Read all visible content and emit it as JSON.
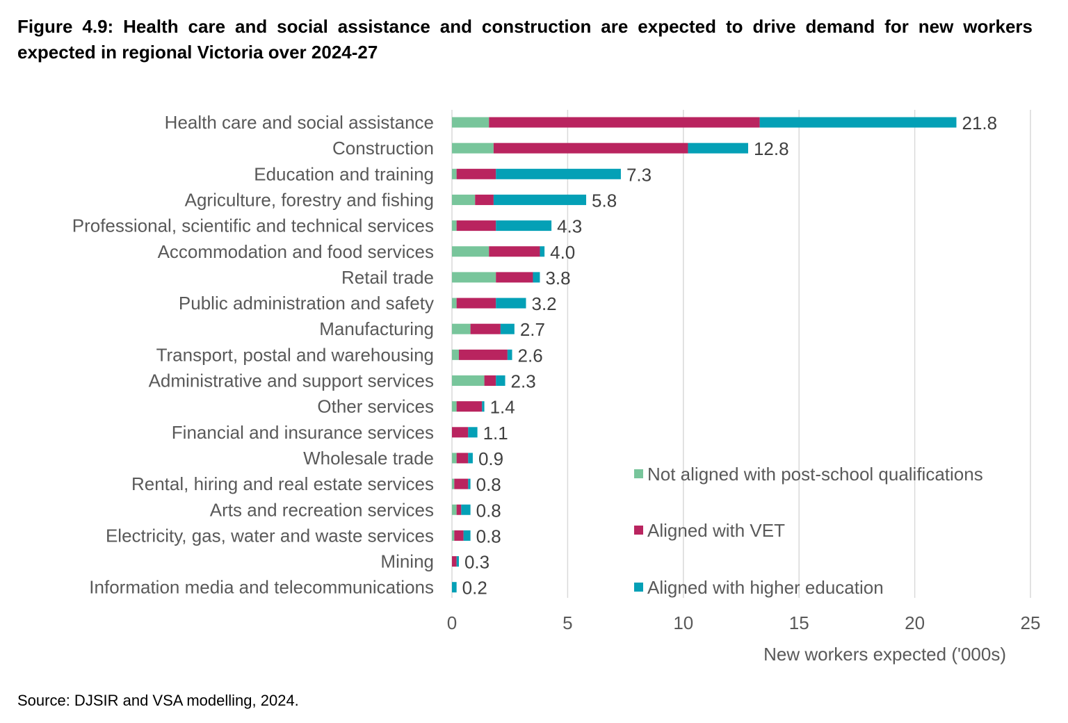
{
  "title": "Figure 4.9: Health care and social assistance and construction are expected to drive demand for new workers expected in regional Victoria over 2024-27",
  "source": "Source:  DJSIR and VSA modelling, 2024.",
  "chart_data": {
    "type": "bar",
    "orientation": "horizontal",
    "stacked": true,
    "title": "Figure 4.9: Health care and social assistance and construction are expected to drive demand for new workers expected in regional Victoria over 2024-27",
    "xlabel": "New workers expected ('000s)",
    "ylabel": "",
    "xlim": [
      0,
      25
    ],
    "xticks": [
      "0",
      "5",
      "10",
      "15",
      "20",
      "25"
    ],
    "grid": "vertical",
    "legend_position": "right",
    "categories": [
      "Health care and social assistance",
      "Construction",
      "Education and training",
      "Agriculture, forestry and fishing",
      "Professional, scientific and technical services",
      "Accommodation and food services",
      "Retail trade",
      "Public administration and safety",
      "Manufacturing",
      "Transport, postal and warehousing",
      "Administrative and support services",
      "Other services",
      "Financial and insurance services",
      "Wholesale trade",
      "Rental, hiring and real estate services",
      "Arts and recreation services",
      "Electricity, gas, water and waste services",
      "Mining",
      "Information media and telecommunications"
    ],
    "series": [
      {
        "name": "Not aligned with post-school qualifications",
        "color": "#78C59B",
        "values": [
          1.6,
          1.8,
          0.2,
          1.0,
          0.2,
          1.6,
          1.9,
          0.2,
          0.8,
          0.3,
          1.4,
          0.2,
          0.0,
          0.2,
          0.1,
          0.2,
          0.1,
          0.0,
          0.0
        ]
      },
      {
        "name": "Aligned with VET",
        "color": "#B9245F",
        "values": [
          11.7,
          8.4,
          1.7,
          0.8,
          1.7,
          2.2,
          1.6,
          1.7,
          1.3,
          2.1,
          0.5,
          1.1,
          0.7,
          0.5,
          0.6,
          0.2,
          0.4,
          0.2,
          0.0
        ]
      },
      {
        "name": "Aligned with higher education",
        "color": "#04A0B6",
        "values": [
          8.5,
          2.6,
          5.4,
          4.0,
          2.4,
          0.2,
          0.3,
          1.3,
          0.6,
          0.2,
          0.4,
          0.1,
          0.4,
          0.2,
          0.1,
          0.4,
          0.3,
          0.1,
          0.2
        ]
      }
    ],
    "totals": [
      "21.8",
      "12.8",
      "7.3",
      "5.8",
      "4.3",
      "4.0",
      "3.8",
      "3.2",
      "2.7",
      "2.6",
      "2.3",
      "1.4",
      "1.1",
      "0.9",
      "0.8",
      "0.8",
      "0.8",
      "0.3",
      "0.2"
    ]
  }
}
